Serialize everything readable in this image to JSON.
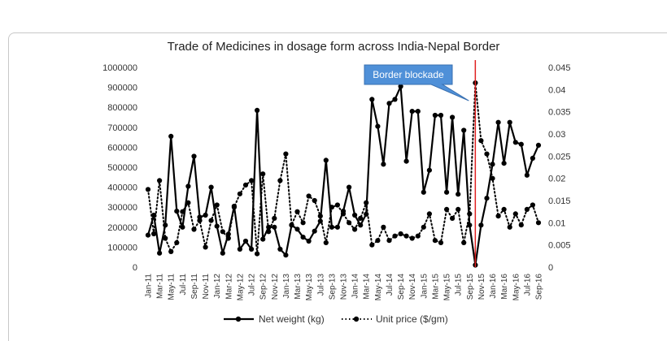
{
  "chart_data": {
    "type": "line",
    "title": "Trade of Medicines in dosage form across India-Nepal Border",
    "categories": [
      "Jan-11",
      "Feb-11",
      "Mar-11",
      "Apr-11",
      "May-11",
      "Jun-11",
      "Jul-11",
      "Aug-11",
      "Sep-11",
      "Oct-11",
      "Nov-11",
      "Dec-11",
      "Jan-12",
      "Feb-12",
      "Mar-12",
      "Apr-12",
      "May-12",
      "Jun-12",
      "Jul-12",
      "Aug-12",
      "Sep-12",
      "Oct-12",
      "Nov-12",
      "Dec-12",
      "Jan-13",
      "Feb-13",
      "Mar-13",
      "Apr-13",
      "May-13",
      "Jun-13",
      "Jul-13",
      "Aug-13",
      "Sep-13",
      "Oct-13",
      "Nov-13",
      "Dec-13",
      "Jan-14",
      "Feb-14",
      "Mar-14",
      "Apr-14",
      "May-14",
      "Jun-14",
      "Jul-14",
      "Aug-14",
      "Sep-14",
      "Oct-14",
      "Nov-14",
      "Dec-14",
      "Jan-15",
      "Feb-15",
      "Mar-15",
      "Apr-15",
      "May-15",
      "Jun-15",
      "Jul-15",
      "Aug-15",
      "Sep-15",
      "Oct-15",
      "Nov-15",
      "Dec-15",
      "Jan-16",
      "Feb-16",
      "Mar-16",
      "Apr-16",
      "May-16",
      "Jun-16",
      "Jul-16",
      "Aug-16",
      "Sep-16"
    ],
    "tick_labels": [
      "Jan-11",
      "Mar-11",
      "May-11",
      "Jul-11",
      "Sep-11",
      "Nov-11",
      "Jan-12",
      "Mar-12",
      "May-12",
      "Jul-12",
      "Sep-12",
      "Nov-12",
      "Jan-13",
      "Mar-13",
      "May-13",
      "Jul-13",
      "Sep-13",
      "Nov-13",
      "Jan-14",
      "Mar-14",
      "May-14",
      "Jul-14",
      "Sep-14",
      "Nov-14",
      "Jan-15",
      "Mar-15",
      "May-15",
      "Jul-15",
      "Sep-15",
      "Nov-15",
      "Jan-16",
      "Mar-16",
      "May-16",
      "Jul-16",
      "Sep-16"
    ],
    "y_left": {
      "min": 0,
      "max": 1000000,
      "step": 100000,
      "tick_labels": [
        "0",
        "100000",
        "200000",
        "300000",
        "400000",
        "500000",
        "600000",
        "700000",
        "800000",
        "900000",
        "1000000"
      ]
    },
    "y_right": {
      "min": 0,
      "max": 0.045,
      "step": 0.005,
      "tick_labels": [
        "0",
        "0.005",
        "0.01",
        "0.015",
        "0.02",
        "0.025",
        "0.03",
        "0.035",
        "0.04",
        "0.045"
      ]
    },
    "grid": false,
    "legend": "bottom",
    "series": [
      {
        "name": "Net weight (kg)",
        "axis": "left",
        "style": "solid",
        "color": "#000000",
        "values": [
          160000,
          260000,
          70000,
          210000,
          655000,
          280000,
          200000,
          405000,
          555000,
          250000,
          260000,
          400000,
          205000,
          70000,
          165000,
          305000,
          90000,
          130000,
          90000,
          785000,
          140000,
          200000,
          200000,
          90000,
          60000,
          210000,
          190000,
          150000,
          130000,
          180000,
          230000,
          535000,
          200000,
          200000,
          280000,
          400000,
          260000,
          210000,
          265000,
          840000,
          705000,
          515000,
          820000,
          840000,
          905000,
          530000,
          780000,
          780000,
          375000,
          485000,
          760000,
          760000,
          375000,
          750000,
          365000,
          685000,
          210000,
          10000,
          210000,
          345000,
          515000,
          725000,
          520000,
          725000,
          625000,
          615000,
          460000,
          545000,
          610000
        ]
      },
      {
        "name": "Unit price ($/gm)",
        "axis": "right",
        "style": "dotted",
        "color": "#000000",
        "values": [
          0.0175,
          0.0075,
          0.0195,
          0.0065,
          0.0035,
          0.0055,
          0.0125,
          0.0145,
          0.0085,
          0.0105,
          0.0045,
          0.0105,
          0.014,
          0.008,
          0.0065,
          0.0135,
          0.0165,
          0.0185,
          0.0195,
          0.003,
          0.021,
          0.008,
          0.011,
          0.0195,
          0.0255,
          0.0095,
          0.0125,
          0.01,
          0.016,
          0.015,
          0.0115,
          0.0055,
          0.0135,
          0.014,
          0.012,
          0.01,
          0.0085,
          0.011,
          0.0145,
          0.005,
          0.006,
          0.009,
          0.006,
          0.007,
          0.0075,
          0.007,
          0.0065,
          0.007,
          0.009,
          0.012,
          0.006,
          0.0055,
          0.013,
          0.011,
          0.013,
          0.0055,
          0.012,
          0.0415,
          0.0285,
          0.0255,
          0.02,
          0.0115,
          0.013,
          0.009,
          0.012,
          0.0095,
          0.013,
          0.014,
          0.01
        ]
      }
    ],
    "annotations": [
      {
        "type": "vertical-line",
        "at": "Oct-15",
        "color": "#e02020"
      },
      {
        "type": "callout",
        "text": "Border blockade",
        "points_to": "Oct-15"
      }
    ]
  },
  "colors": {
    "callout_fill": "#4f90d8",
    "callout_border": "#3a70b0",
    "marker_line": "#e02020"
  }
}
